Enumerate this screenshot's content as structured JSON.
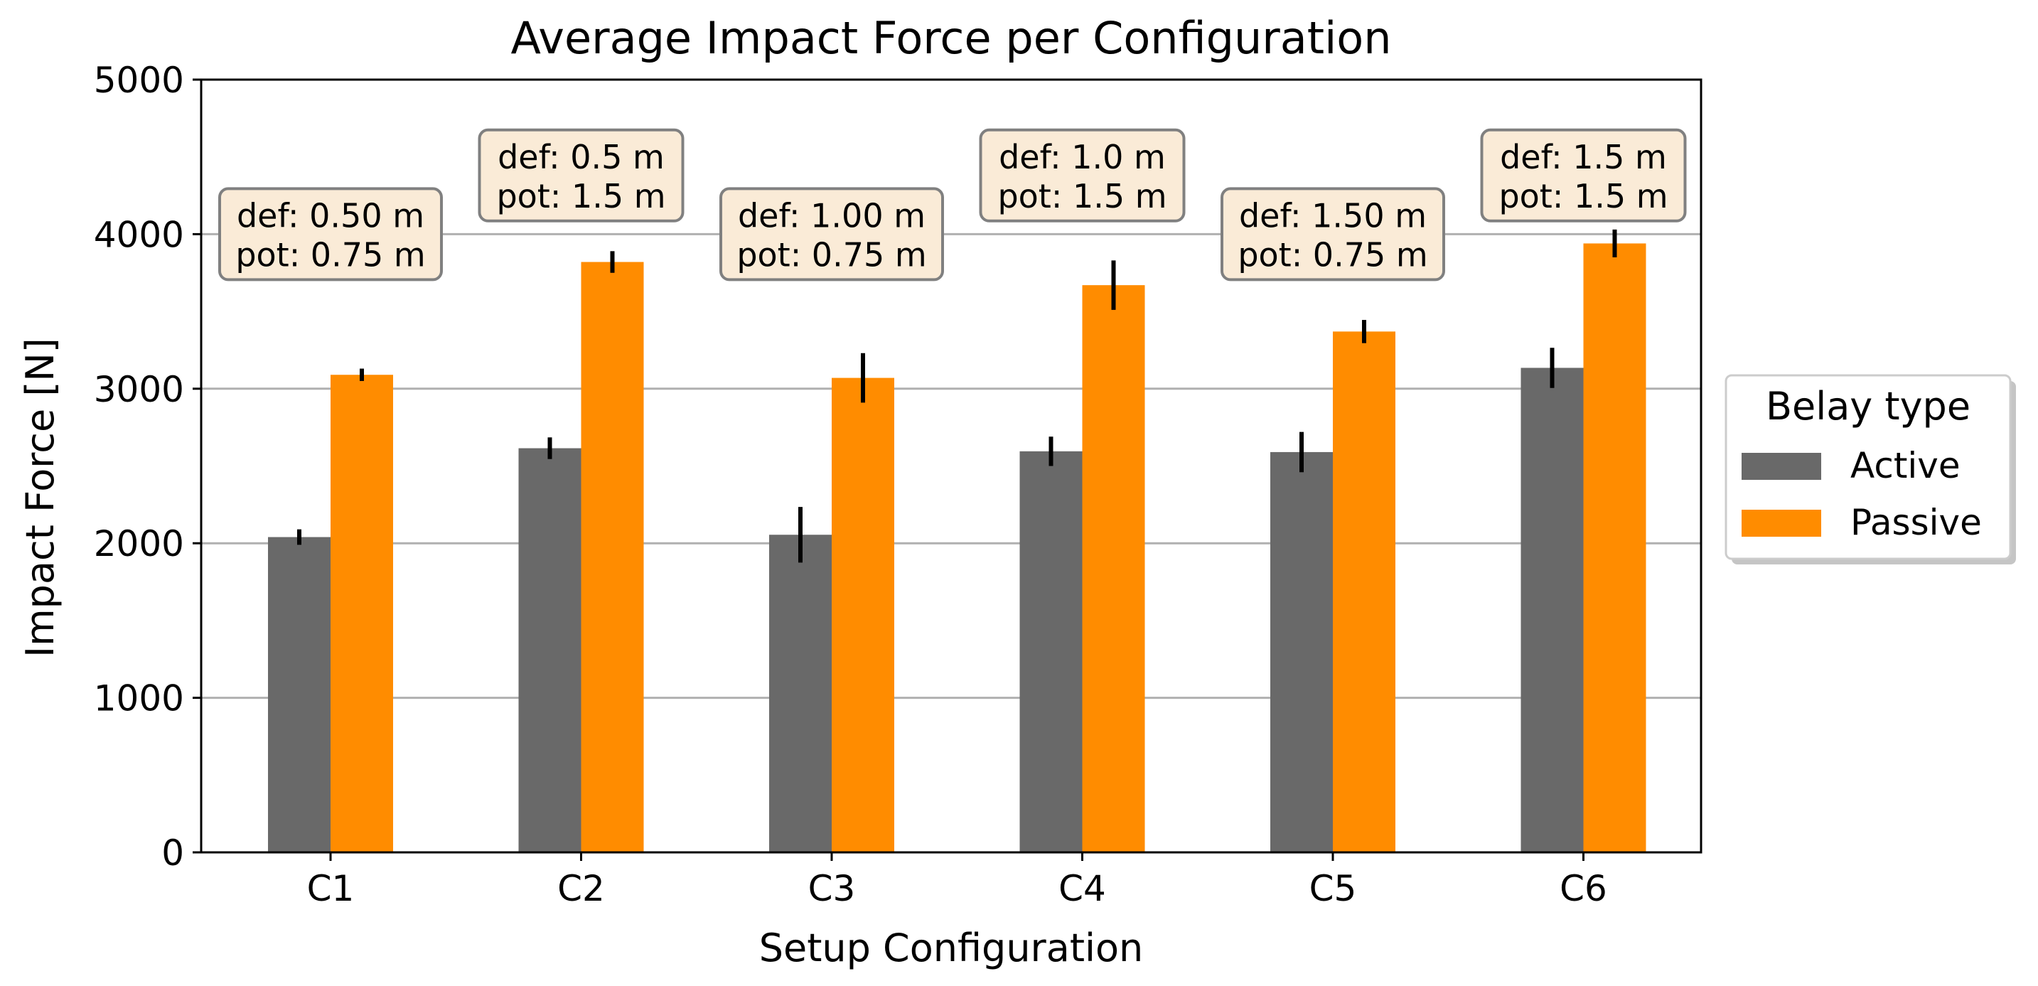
{
  "chart_data": {
    "type": "bar",
    "title": "Average Impact Force per Configuration",
    "xlabel": "Setup Configuration",
    "ylabel": "Impact Force [N]",
    "ylim": [
      0,
      5000
    ],
    "yticks": [
      0,
      1000,
      2000,
      3000,
      4000,
      5000
    ],
    "ytick_labels": [
      "0",
      "1000",
      "2000",
      "3000",
      "4000",
      "5000"
    ],
    "grid": "horizontal",
    "categories": [
      "C1",
      "C2",
      "C3",
      "C4",
      "C5",
      "C6"
    ],
    "series": [
      {
        "name": "Active",
        "color": "#696969",
        "values": [
          2040,
          2615,
          2055,
          2595,
          2590,
          3135
        ],
        "errors": [
          50,
          70,
          180,
          95,
          130,
          130
        ]
      },
      {
        "name": "Passive",
        "color": "#ff8c00",
        "values": [
          3090,
          3820,
          3070,
          3670,
          3370,
          3940
        ],
        "errors": [
          40,
          70,
          160,
          160,
          75,
          90
        ]
      }
    ],
    "annotations": [
      {
        "line1": "def: 0.50 m",
        "line2": "pot: 0.75 m",
        "anchor_value": 4000
      },
      {
        "line1": "def: 0.5 m",
        "line2": "pot: 1.5 m",
        "anchor_value": 4380
      },
      {
        "line1": "def: 1.00 m",
        "line2": "pot: 0.75 m",
        "anchor_value": 4000
      },
      {
        "line1": "def: 1.0 m",
        "line2": "pot: 1.5 m",
        "anchor_value": 4380
      },
      {
        "line1": "def: 1.50 m",
        "line2": "pot: 0.75 m",
        "anchor_value": 4000
      },
      {
        "line1": "def: 1.5 m",
        "line2": "pot: 1.5 m",
        "anchor_value": 4380
      }
    ],
    "annotation_style": {
      "fill": "#faebd7",
      "stroke": "#808080"
    },
    "legend": {
      "title": "Belay type",
      "placement": "right"
    }
  }
}
